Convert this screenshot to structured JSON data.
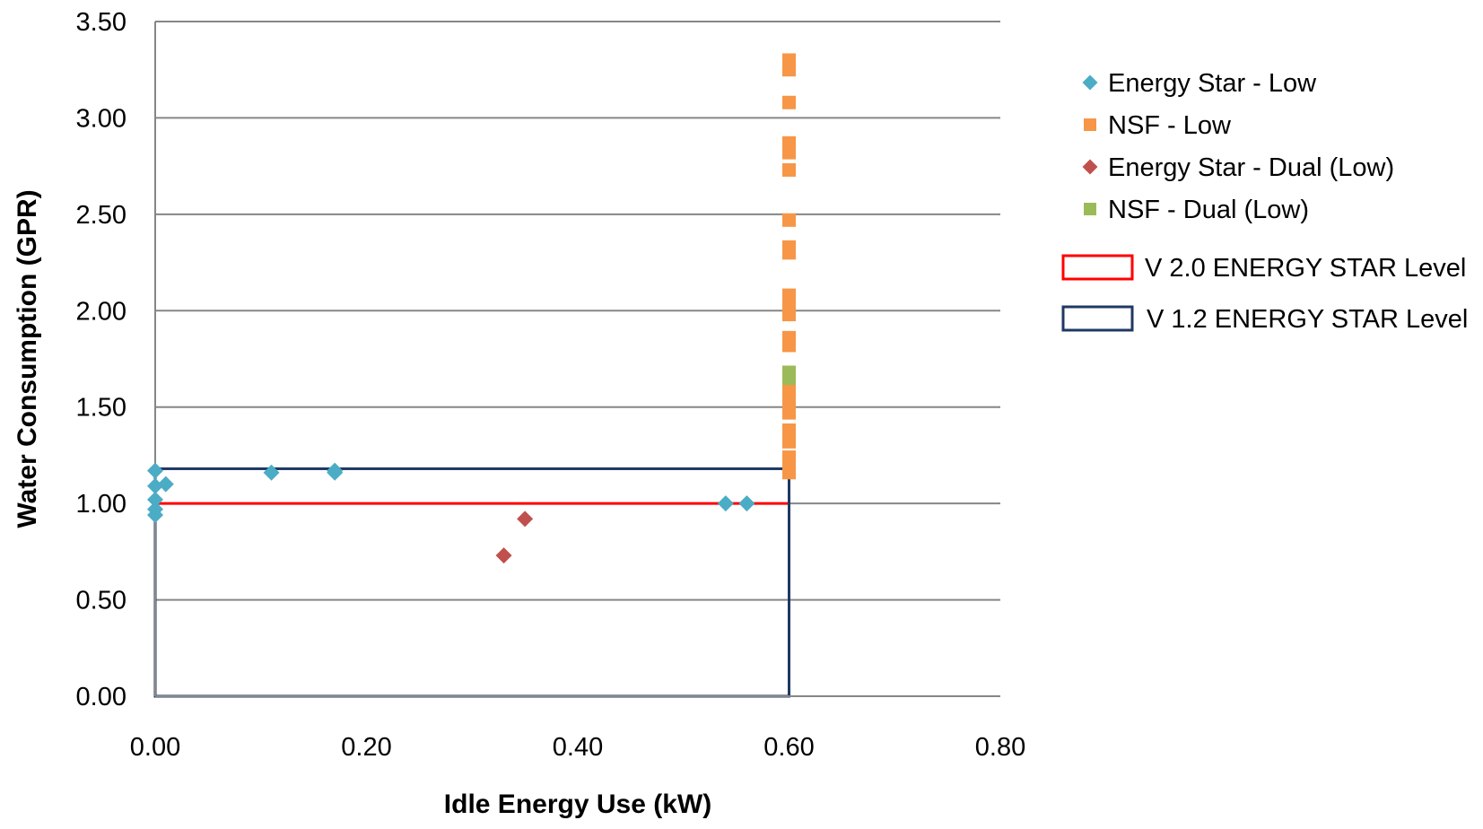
{
  "chart_data": {
    "type": "scatter",
    "title": "",
    "xlabel": "Idle Energy Use (kW)",
    "ylabel": "Water Consumption (GPR)",
    "xlim": [
      0,
      0.8
    ],
    "ylim": [
      0,
      3.5
    ],
    "xticks": [
      "0.00",
      "0.20",
      "0.40",
      "0.60",
      "0.80"
    ],
    "yticks": [
      "0.00",
      "0.50",
      "1.00",
      "1.50",
      "2.00",
      "2.50",
      "3.00",
      "3.50"
    ],
    "grid": "horizontal",
    "legend_position": "right",
    "series": [
      {
        "name": "Energy Star - Low",
        "marker": "diamond",
        "color": "#4BACC6",
        "points": [
          [
            0.0,
            1.17
          ],
          [
            0.0,
            1.09
          ],
          [
            0.0,
            1.02
          ],
          [
            0.0,
            0.97
          ],
          [
            0.0,
            0.94
          ],
          [
            0.01,
            1.1
          ],
          [
            0.11,
            1.16
          ],
          [
            0.17,
            1.17
          ],
          [
            0.17,
            1.16
          ],
          [
            0.54,
            1.0
          ],
          [
            0.56,
            1.0
          ]
        ]
      },
      {
        "name": "NSF - Low",
        "marker": "square",
        "color": "#F79646",
        "points": [
          [
            0.6,
            3.3
          ],
          [
            0.6,
            3.25
          ],
          [
            0.6,
            3.08
          ],
          [
            0.6,
            2.87
          ],
          [
            0.6,
            2.82
          ],
          [
            0.6,
            2.73
          ],
          [
            0.6,
            2.47
          ],
          [
            0.6,
            2.33
          ],
          [
            0.6,
            2.3
          ],
          [
            0.6,
            2.08
          ],
          [
            0.6,
            2.03
          ],
          [
            0.6,
            1.98
          ],
          [
            0.6,
            1.86
          ],
          [
            0.6,
            1.82
          ],
          [
            0.6,
            1.68
          ],
          [
            0.6,
            1.6
          ],
          [
            0.6,
            1.57
          ],
          [
            0.6,
            1.53
          ],
          [
            0.6,
            1.47
          ],
          [
            0.6,
            1.38
          ],
          [
            0.6,
            1.32
          ],
          [
            0.6,
            1.24
          ],
          [
            0.6,
            1.2
          ],
          [
            0.6,
            1.16
          ]
        ]
      },
      {
        "name": "Energy Star - Dual (Low)",
        "marker": "diamond",
        "color": "#C0504D",
        "points": [
          [
            0.33,
            0.73
          ],
          [
            0.35,
            0.92
          ]
        ]
      },
      {
        "name": "NSF - Dual (Low)",
        "marker": "square",
        "color": "#9BBB59",
        "points": [
          [
            0.6,
            1.68
          ],
          [
            0.6,
            1.65
          ]
        ]
      }
    ],
    "reference_boxes": [
      {
        "name": "V 2.0 ENERGY STAR Level",
        "color": "#FF0000",
        "x": [
          0,
          0.6
        ],
        "y": [
          0,
          1.0
        ]
      },
      {
        "name": "V 1.2 ENERGY STAR Level",
        "color": "#1F3864",
        "x": [
          0,
          0.6
        ],
        "y": [
          0,
          1.18
        ]
      }
    ]
  }
}
